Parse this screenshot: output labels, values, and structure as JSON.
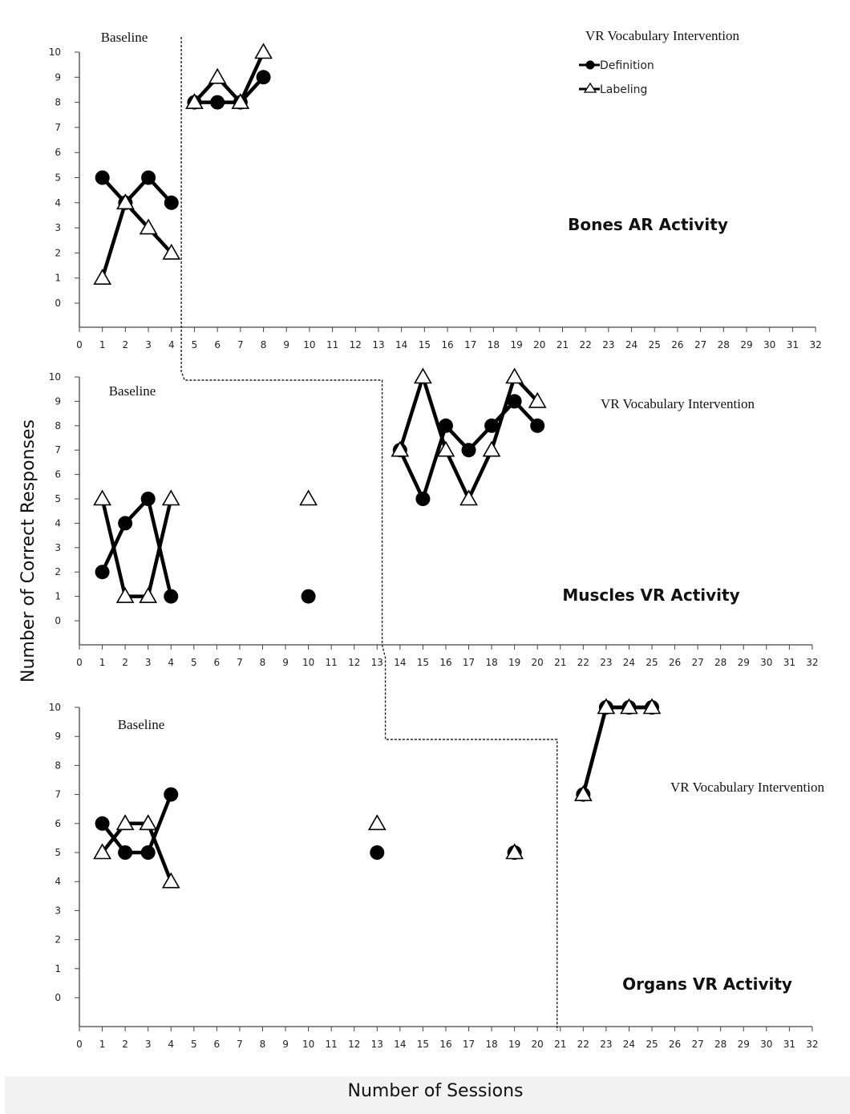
{
  "labels": {
    "y_axis": "Number of Correct Responses",
    "x_axis": "Number of Sessions"
  },
  "legend": {
    "definition": "Definition",
    "labeling": "Labeling"
  },
  "chart_data": [
    {
      "type": "line",
      "title": "Bones AR Activity",
      "phase_labels": {
        "baseline": "Baseline",
        "intervention": "VR Vocabulary Intervention"
      },
      "xlim": [
        0,
        32
      ],
      "ylim": [
        -1,
        10
      ],
      "x_ticks": [
        0,
        1,
        2,
        3,
        4,
        5,
        6,
        7,
        8,
        9,
        10,
        11,
        12,
        13,
        14,
        15,
        16,
        17,
        18,
        19,
        20,
        21,
        22,
        23,
        24,
        25,
        26,
        27,
        28,
        29,
        30,
        31,
        32
      ],
      "y_ticks": [
        0,
        1,
        2,
        3,
        4,
        5,
        6,
        7,
        8,
        9,
        10
      ],
      "phase_change_after": 4.5,
      "series": [
        {
          "name": "Definition",
          "marker": "circle",
          "segments": [
            [
              [
                1,
                5
              ],
              [
                2,
                4
              ],
              [
                3,
                5
              ],
              [
                4,
                4
              ]
            ],
            [
              [
                5,
                8
              ],
              [
                6,
                8
              ],
              [
                7,
                8
              ],
              [
                8,
                9
              ]
            ]
          ]
        },
        {
          "name": "Labeling",
          "marker": "triangle",
          "segments": [
            [
              [
                1,
                1
              ],
              [
                2,
                4
              ],
              [
                3,
                3
              ],
              [
                4,
                2
              ]
            ],
            [
              [
                5,
                8
              ],
              [
                6,
                9
              ],
              [
                7,
                8
              ],
              [
                8,
                10
              ]
            ]
          ]
        }
      ]
    },
    {
      "type": "line",
      "title": "Muscles  VR Activity",
      "phase_labels": {
        "baseline": "Baseline",
        "intervention": "VR Vocabulary Intervention"
      },
      "xlim": [
        0,
        32
      ],
      "ylim": [
        -1,
        10
      ],
      "x_ticks": [
        0,
        1,
        2,
        3,
        4,
        5,
        6,
        7,
        8,
        9,
        10,
        11,
        12,
        13,
        14,
        15,
        16,
        17,
        18,
        19,
        20,
        21,
        22,
        23,
        24,
        25,
        26,
        27,
        28,
        29,
        30,
        31,
        32
      ],
      "y_ticks": [
        0,
        1,
        2,
        3,
        4,
        5,
        6,
        7,
        8,
        9,
        10
      ],
      "phase_change_after": 13.5,
      "series": [
        {
          "name": "Definition",
          "marker": "circle",
          "segments": [
            [
              [
                1,
                2
              ],
              [
                2,
                4
              ],
              [
                3,
                5
              ],
              [
                4,
                1
              ]
            ],
            [
              [
                10,
                1
              ]
            ],
            [
              [
                14,
                7
              ],
              [
                15,
                5
              ],
              [
                16,
                8
              ],
              [
                17,
                7
              ],
              [
                18,
                8
              ],
              [
                19,
                9
              ],
              [
                20,
                8
              ]
            ]
          ]
        },
        {
          "name": "Labeling",
          "marker": "triangle",
          "segments": [
            [
              [
                1,
                5
              ],
              [
                2,
                1
              ],
              [
                3,
                1
              ],
              [
                4,
                5
              ]
            ],
            [
              [
                10,
                5
              ]
            ],
            [
              [
                14,
                7
              ],
              [
                15,
                10
              ],
              [
                16,
                7
              ],
              [
                17,
                5
              ],
              [
                18,
                7
              ],
              [
                19,
                10
              ],
              [
                20,
                9
              ]
            ]
          ]
        }
      ]
    },
    {
      "type": "line",
      "title": "Organs VR Activity",
      "phase_labels": {
        "baseline": "Baseline",
        "intervention": "VR Vocabulary Intervention"
      },
      "xlim": [
        0,
        32
      ],
      "ylim": [
        -1,
        10
      ],
      "x_ticks": [
        0,
        1,
        2,
        3,
        4,
        5,
        6,
        7,
        8,
        9,
        10,
        11,
        12,
        13,
        14,
        15,
        16,
        17,
        18,
        19,
        20,
        21,
        22,
        23,
        24,
        25,
        26,
        27,
        28,
        29,
        30,
        31,
        32
      ],
      "y_ticks": [
        0,
        1,
        2,
        3,
        4,
        5,
        6,
        7,
        8,
        9,
        10
      ],
      "phase_change_after": 21,
      "series": [
        {
          "name": "Definition",
          "marker": "circle",
          "segments": [
            [
              [
                1,
                6
              ],
              [
                2,
                5
              ],
              [
                3,
                5
              ],
              [
                4,
                7
              ]
            ],
            [
              [
                13,
                5
              ]
            ],
            [
              [
                19,
                5
              ]
            ],
            [
              [
                22,
                7
              ],
              [
                23,
                10
              ],
              [
                24,
                10
              ],
              [
                25,
                10
              ]
            ]
          ]
        },
        {
          "name": "Labeling",
          "marker": "triangle",
          "segments": [
            [
              [
                1,
                5
              ],
              [
                2,
                6
              ],
              [
                3,
                6
              ],
              [
                4,
                4
              ]
            ],
            [
              [
                13,
                6
              ]
            ],
            [
              [
                19,
                5
              ]
            ],
            [
              [
                22,
                7
              ],
              [
                23,
                10
              ],
              [
                24,
                10
              ],
              [
                25,
                10
              ]
            ]
          ]
        }
      ]
    }
  ]
}
